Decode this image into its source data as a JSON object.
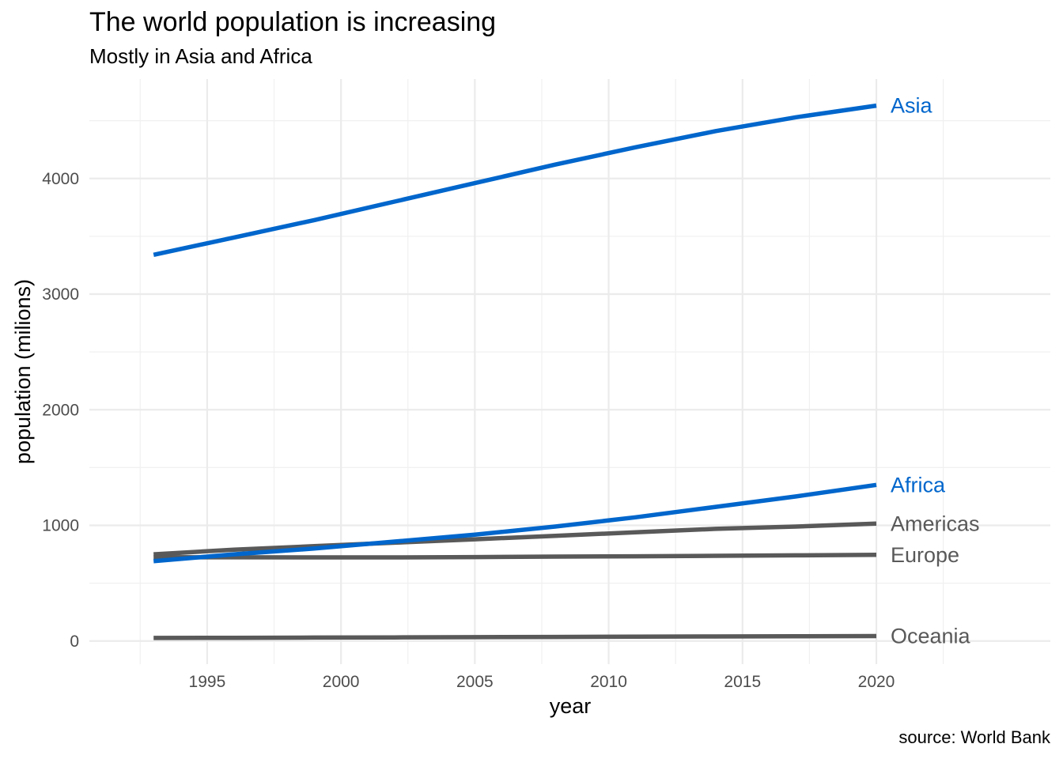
{
  "chart_data": {
    "type": "line",
    "title": "The world population is increasing",
    "subtitle": "Mostly in Asia and Africa",
    "xlabel": "year",
    "ylabel": "population (milions)",
    "caption": "source: World Bank",
    "xlim": [
      1990.6,
      2026.5
    ],
    "ylim": [
      -200,
      4860
    ],
    "x_ticks": [
      1995,
      2000,
      2005,
      2010,
      2015,
      2020
    ],
    "y_ticks": [
      0,
      1000,
      2000,
      3000,
      4000
    ],
    "grid": true,
    "legend": "direct labels at line ends",
    "x": [
      1993,
      1996,
      1999,
      2002,
      2005,
      2008,
      2011,
      2014,
      2017,
      2020
    ],
    "series": [
      {
        "name": "Asia",
        "color": "#0066cc",
        "values": [
          3340,
          3490,
          3640,
          3800,
          3960,
          4120,
          4270,
          4410,
          4530,
          4630
        ]
      },
      {
        "name": "Africa",
        "color": "#0066cc",
        "values": [
          690,
          750,
          800,
          860,
          920,
          990,
          1070,
          1160,
          1250,
          1350
        ]
      },
      {
        "name": "Americas",
        "color": "#595959",
        "values": [
          750,
          790,
          820,
          850,
          880,
          910,
          940,
          970,
          990,
          1015
        ]
      },
      {
        "name": "Europe",
        "color": "#595959",
        "values": [
          725,
          724,
          723,
          723,
          726,
          730,
          733,
          737,
          741,
          745
        ]
      },
      {
        "name": "Oceania",
        "color": "#595959",
        "values": [
          26,
          28,
          30,
          31,
          33,
          35,
          37,
          39,
          41,
          43
        ]
      }
    ]
  }
}
